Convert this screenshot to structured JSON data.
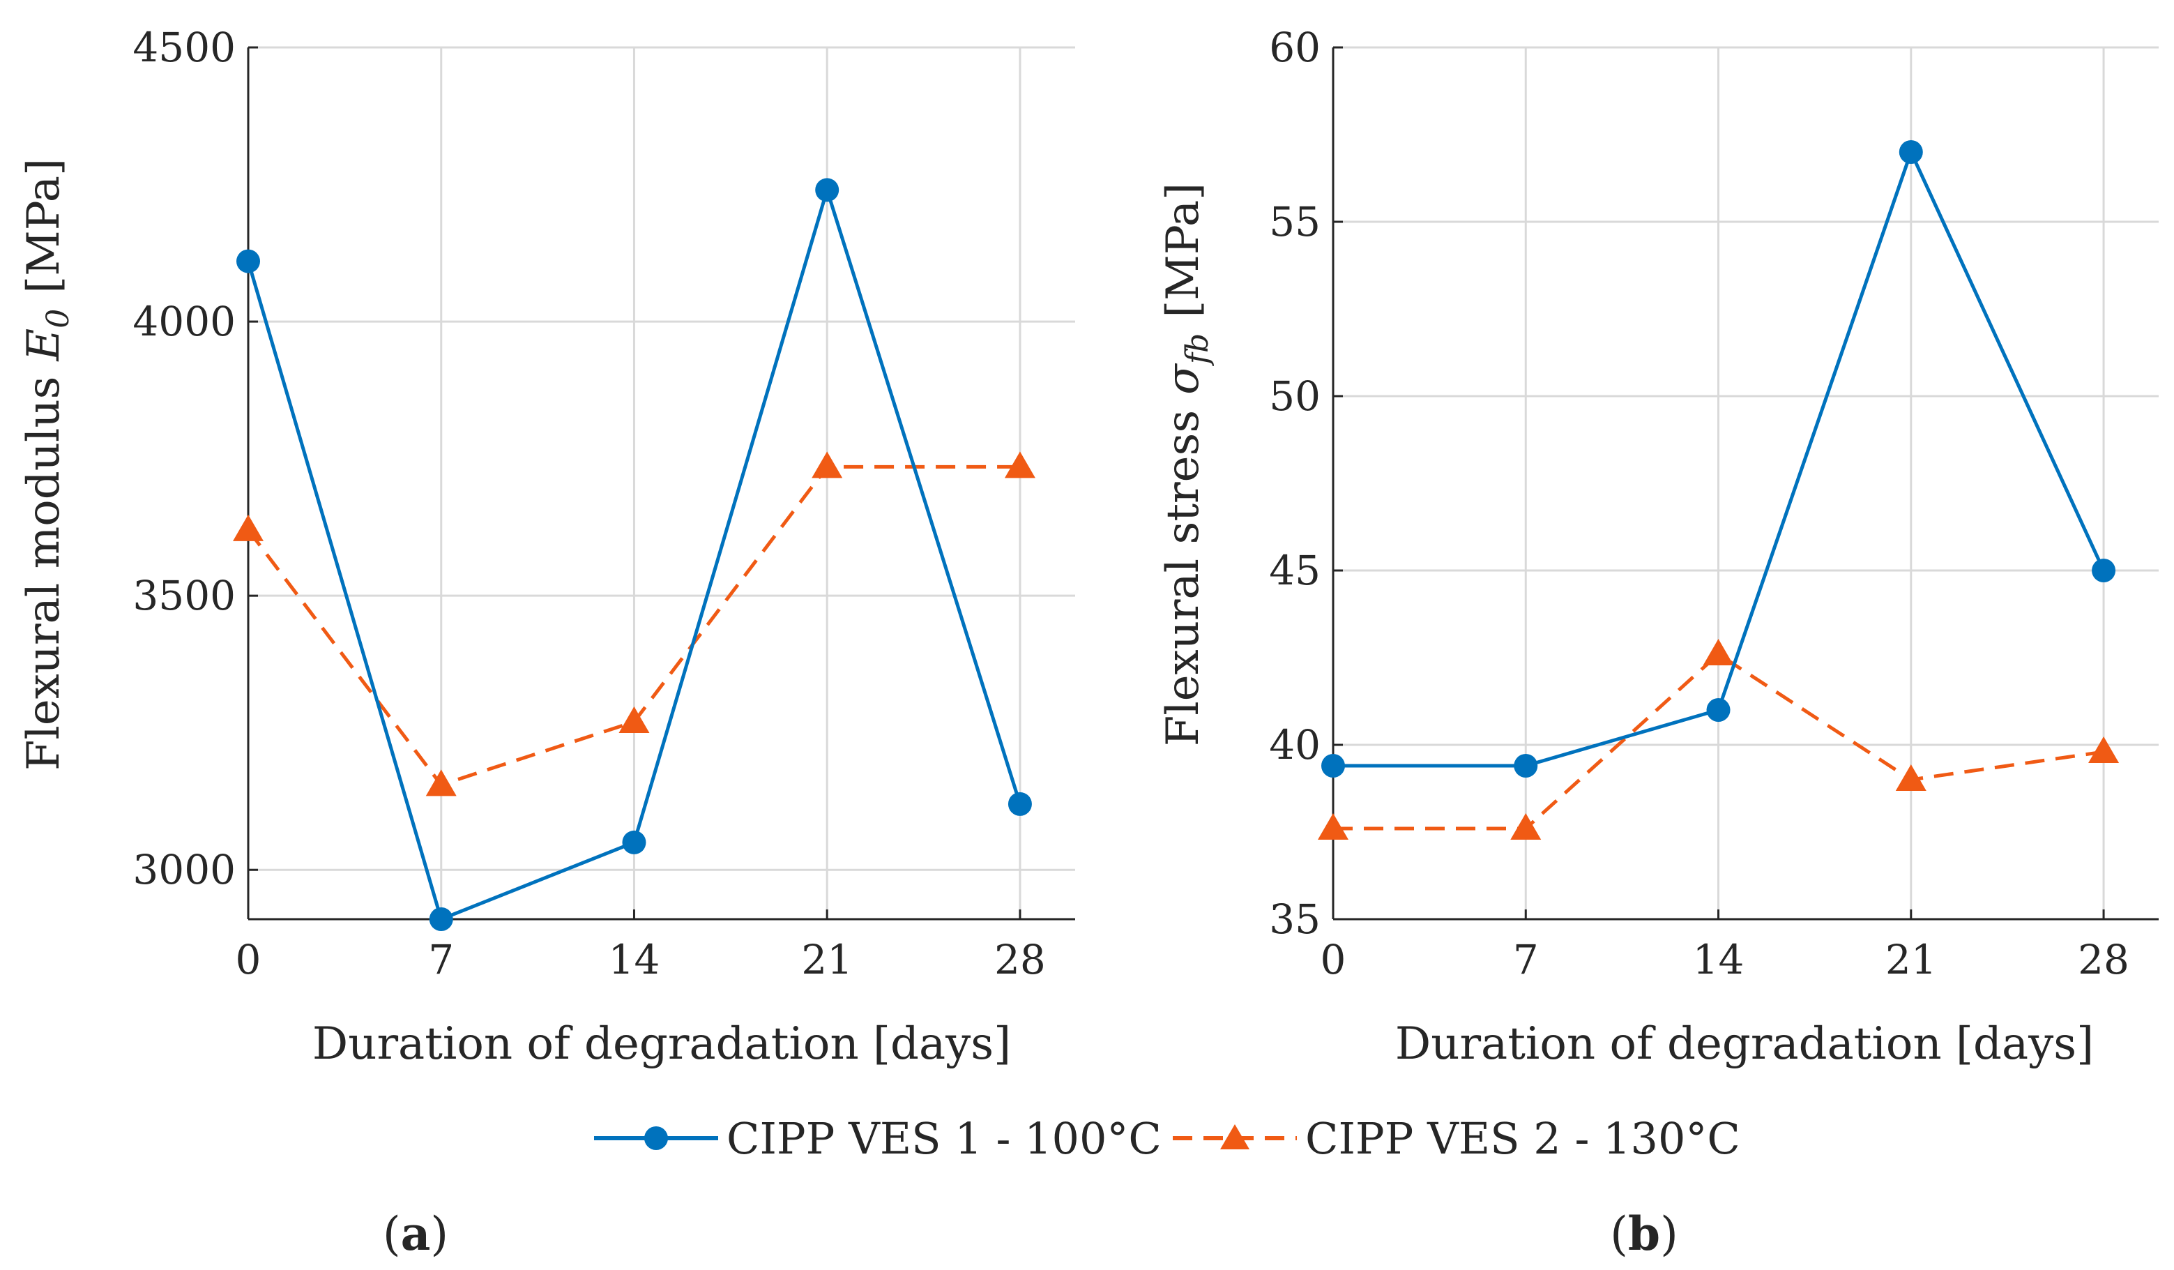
{
  "colors": {
    "series1": "#0072BD",
    "series2": "#F05A14",
    "grid": "#d9d9d9",
    "axis": "#262626",
    "text": "#262626"
  },
  "legend": {
    "entries": [
      "CIPP VES 1 - 100°C",
      "CIPP VES 2 - 130°C"
    ]
  },
  "chart_data": [
    {
      "type": "line",
      "panel_label": "(a)",
      "panel_letter": "a",
      "title": "",
      "x": [
        0,
        7,
        14,
        21,
        28
      ],
      "xticks": [
        "0",
        "7",
        "14",
        "21",
        "28"
      ],
      "yticks": [
        "3000",
        "3500",
        "4000",
        "4500"
      ],
      "xlim": [
        0,
        30
      ],
      "ylim": [
        2910,
        4500
      ],
      "xlabel": "Duration of degradation [days]",
      "ylabel_prefix": "Flexural modulus",
      "ylabel_symbol": "E",
      "ylabel_subscript": "0",
      "ylabel_unit": "[MPa]",
      "grid": true,
      "series": [
        {
          "name": "CIPP VES 1 - 100°C",
          "marker": "circle",
          "line": "solid",
          "values": [
            4110,
            2910,
            3050,
            4240,
            3120
          ]
        },
        {
          "name": "CIPP VES 2 - 130°C",
          "marker": "triangle",
          "line": "dashed",
          "values": [
            3620,
            3155,
            3270,
            3735,
            3735
          ]
        }
      ]
    },
    {
      "type": "line",
      "panel_label": "(b)",
      "panel_letter": "b",
      "title": "",
      "x": [
        0,
        7,
        14,
        21,
        28
      ],
      "xticks": [
        "0",
        "7",
        "14",
        "21",
        "28"
      ],
      "yticks": [
        "35",
        "40",
        "45",
        "50",
        "55",
        "60"
      ],
      "xlim": [
        0,
        30
      ],
      "ylim": [
        35,
        60
      ],
      "xlabel": "Duration of degradation [days]",
      "ylabel_prefix": "Flexural stress",
      "ylabel_symbol": "σ",
      "ylabel_subscript": "fb",
      "ylabel_unit": "[MPa]",
      "grid": true,
      "series": [
        {
          "name": "CIPP VES 1 - 100°C",
          "marker": "circle",
          "line": "solid",
          "values": [
            39.4,
            39.4,
            41.0,
            57.0,
            45.0
          ]
        },
        {
          "name": "CIPP VES 2 - 130°C",
          "marker": "triangle",
          "line": "dashed",
          "values": [
            37.6,
            37.6,
            42.6,
            39.0,
            39.8
          ]
        }
      ]
    }
  ]
}
